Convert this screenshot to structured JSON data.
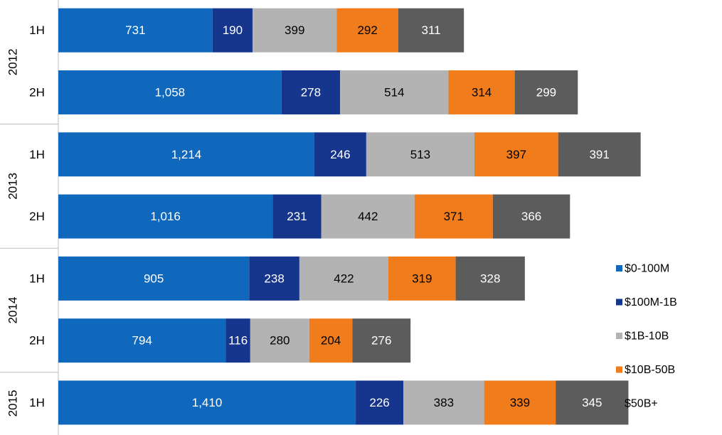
{
  "chart_data": {
    "type": "bar",
    "orientation": "horizontal",
    "stacked": true,
    "groups": [
      {
        "label": "2012",
        "categories": [
          "1H",
          "2H"
        ]
      },
      {
        "label": "2013",
        "categories": [
          "1H",
          "2H"
        ]
      },
      {
        "label": "2014",
        "categories": [
          "1H",
          "2H"
        ]
      },
      {
        "label": "2015",
        "categories": [
          "1H"
        ]
      }
    ],
    "rows": [
      {
        "year": "2012",
        "half": "1H",
        "values": [
          731,
          190,
          399,
          292,
          311
        ],
        "labels": [
          "731",
          "190",
          "399",
          "292",
          "311"
        ]
      },
      {
        "year": "2012",
        "half": "2H",
        "values": [
          1058,
          278,
          514,
          314,
          299
        ],
        "labels": [
          "1,058",
          "278",
          "514",
          "314",
          "299"
        ]
      },
      {
        "year": "2013",
        "half": "1H",
        "values": [
          1214,
          246,
          513,
          397,
          391
        ],
        "labels": [
          "1,214",
          "246",
          "513",
          "397",
          "391"
        ]
      },
      {
        "year": "2013",
        "half": "2H",
        "values": [
          1016,
          231,
          442,
          371,
          366
        ],
        "labels": [
          "1,016",
          "231",
          "442",
          "371",
          "366"
        ]
      },
      {
        "year": "2014",
        "half": "1H",
        "values": [
          905,
          238,
          422,
          319,
          328
        ],
        "labels": [
          "905",
          "238",
          "422",
          "319",
          "328"
        ]
      },
      {
        "year": "2014",
        "half": "2H",
        "values": [
          794,
          116,
          280,
          204,
          276
        ],
        "labels": [
          "794",
          "116",
          "280",
          "204",
          "276"
        ]
      },
      {
        "year": "2015",
        "half": "1H",
        "values": [
          1410,
          226,
          383,
          339,
          345
        ],
        "labels": [
          "1,410",
          "226",
          "383",
          "339",
          "345"
        ]
      }
    ],
    "series": [
      {
        "name": "$0-100M",
        "color": "#1068bd",
        "label_color": "#ffffff"
      },
      {
        "name": "$100M-1B",
        "color": "#16368e",
        "label_color": "#ffffff"
      },
      {
        "name": "$1B-10B",
        "color": "#b3b3b3",
        "label_color": "#000000"
      },
      {
        "name": "$10B-50B",
        "color": "#f07c1c",
        "label_color": "#000000"
      },
      {
        "name": "$50B+",
        "color": "#5c5c5c",
        "label_color": "#ffffff"
      }
    ],
    "xlim": [
      0,
      2750
    ],
    "grid": false,
    "legend_position": "right"
  }
}
